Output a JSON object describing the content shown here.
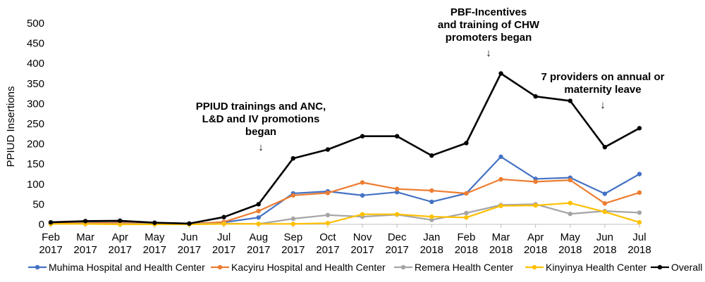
{
  "chart_data": {
    "type": "line",
    "ylabel": "PPIUD Insertions",
    "ylim": [
      0,
      500
    ],
    "ytick_step": 50,
    "grid": false,
    "legend_position": "bottom",
    "categories": [
      [
        "Feb",
        "2017"
      ],
      [
        "Mar",
        "2017"
      ],
      [
        "Apr",
        "2017"
      ],
      [
        "May",
        "2017"
      ],
      [
        "Jun",
        "2017"
      ],
      [
        "Jul",
        "2017"
      ],
      [
        "Aug",
        "2017"
      ],
      [
        "Sep",
        "2017"
      ],
      [
        "Oct",
        "2017"
      ],
      [
        "Nov",
        "2017"
      ],
      [
        "Dec",
        "2017"
      ],
      [
        "Jan",
        "2018"
      ],
      [
        "Feb",
        "2018"
      ],
      [
        "Mar",
        "2018"
      ],
      [
        "Apr",
        "2018"
      ],
      [
        "May",
        "2018"
      ],
      [
        "Jun",
        "2018"
      ],
      [
        "Jul",
        "2018"
      ]
    ],
    "series": [
      {
        "name": "Muhima Hospital and Health Center",
        "color": "#4472C4",
        "values": [
          3,
          4,
          5,
          2,
          1,
          5,
          17,
          77,
          82,
          72,
          80,
          56,
          77,
          168,
          113,
          116,
          76,
          125
        ]
      },
      {
        "name": "Kacyiru Hospital and Health Center",
        "color": "#ED7D31",
        "values": [
          2,
          3,
          4,
          1,
          1,
          6,
          33,
          72,
          78,
          104,
          88,
          84,
          77,
          112,
          106,
          110,
          52,
          79
        ]
      },
      {
        "name": "Remera Health Center",
        "color": "#A5A5A5",
        "values": [
          1,
          1,
          1,
          1,
          1,
          2,
          1,
          14,
          23,
          19,
          24,
          11,
          28,
          48,
          50,
          26,
          33,
          29
        ]
      },
      {
        "name": "Kinyinya Health Center",
        "color": "#FFC000",
        "values": [
          1,
          1,
          0,
          0,
          0,
          1,
          1,
          1,
          3,
          25,
          25,
          19,
          17,
          46,
          47,
          53,
          31,
          5
        ]
      },
      {
        "name": "Overall",
        "color": "#000000",
        "values": [
          5,
          8,
          9,
          4,
          2,
          18,
          50,
          164,
          186,
          219,
          219,
          171,
          202,
          375,
          318,
          307,
          192,
          239
        ]
      }
    ],
    "annotations": [
      {
        "lines": [
          "PPIUD trainings and ANC,",
          "L&D and IV promotions",
          "began"
        ],
        "arrow": "↓",
        "category_index": 6
      },
      {
        "lines": [
          "PBF-Incentives",
          "and training of CHW",
          "promoters began"
        ],
        "arrow": "↓",
        "category_index": 13
      },
      {
        "lines": [
          "7 providers on annual or",
          "maternity leave"
        ],
        "arrow": "↓",
        "category_index": 16
      }
    ]
  }
}
